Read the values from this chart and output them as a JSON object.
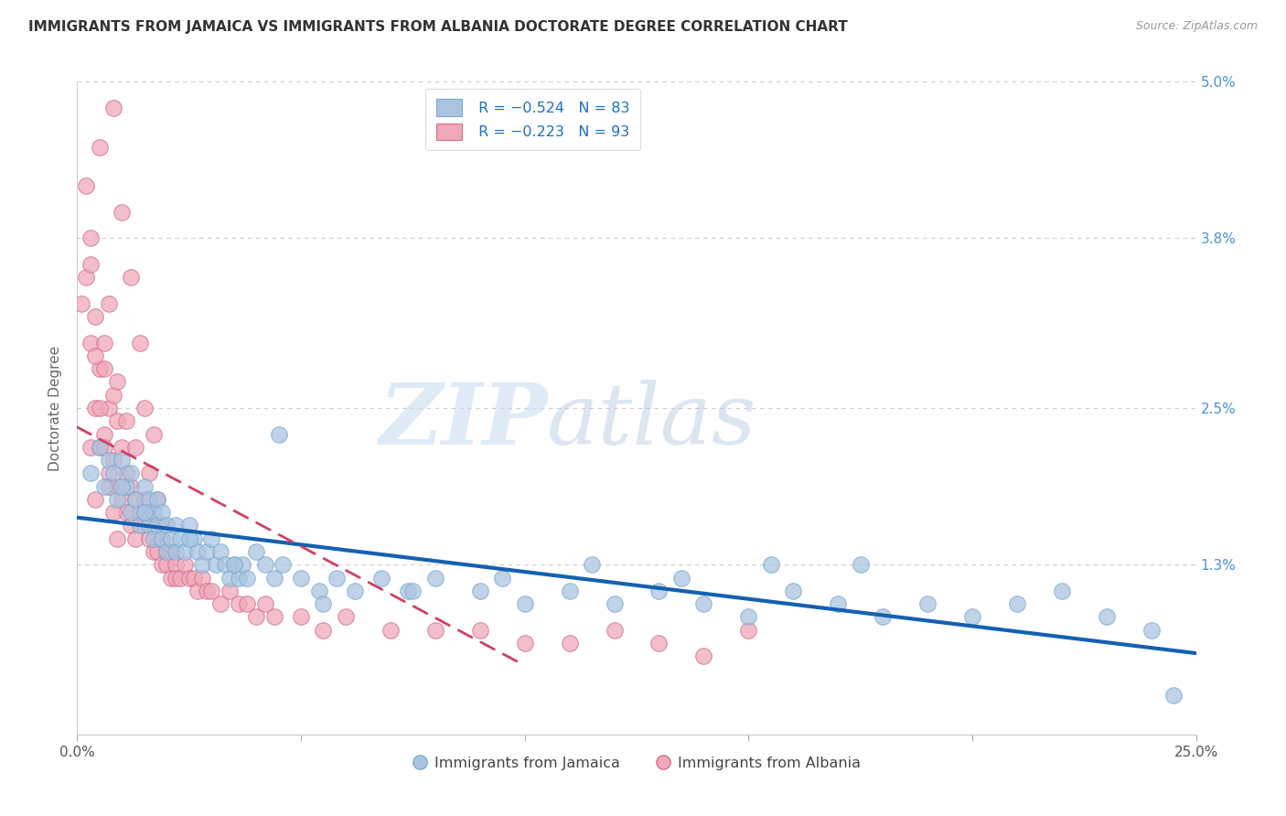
{
  "title": "IMMIGRANTS FROM JAMAICA VS IMMIGRANTS FROM ALBANIA DOCTORATE DEGREE CORRELATION CHART",
  "source": "Source: ZipAtlas.com",
  "ylabel": "Doctorate Degree",
  "xlim": [
    0,
    0.25
  ],
  "ylim": [
    0,
    0.05
  ],
  "ytick_vals": [
    0.0,
    0.013,
    0.025,
    0.038,
    0.05
  ],
  "ytick_labels": [
    "",
    "1.3%",
    "2.5%",
    "3.8%",
    "5.0%"
  ],
  "xtick_show": [
    0.0,
    0.25
  ],
  "xtick_labels_show": [
    "0.0%",
    "25.0%"
  ],
  "xtick_minor": [
    0.05,
    0.1,
    0.15,
    0.2
  ],
  "legend_r_blue": "-0.524",
  "legend_n_blue": "83",
  "legend_r_pink": "-0.223",
  "legend_n_pink": "93",
  "legend_label_blue": "Immigrants from Jamaica",
  "legend_label_pink": "Immigrants from Albania",
  "color_blue": "#aac4e0",
  "color_pink": "#f0a8b8",
  "color_blue_line": "#1460b0",
  "color_pink_line": "#d04060",
  "watermark_zip": "ZIP",
  "watermark_atlas": "atlas",
  "jamaica_x": [
    0.003,
    0.005,
    0.006,
    0.007,
    0.008,
    0.009,
    0.01,
    0.011,
    0.012,
    0.012,
    0.013,
    0.014,
    0.015,
    0.015,
    0.016,
    0.016,
    0.017,
    0.017,
    0.018,
    0.018,
    0.019,
    0.019,
    0.02,
    0.02,
    0.021,
    0.022,
    0.022,
    0.023,
    0.024,
    0.025,
    0.026,
    0.027,
    0.028,
    0.029,
    0.03,
    0.031,
    0.032,
    0.033,
    0.034,
    0.035,
    0.036,
    0.037,
    0.038,
    0.04,
    0.042,
    0.044,
    0.046,
    0.05,
    0.054,
    0.058,
    0.062,
    0.068,
    0.074,
    0.08,
    0.09,
    0.1,
    0.11,
    0.12,
    0.13,
    0.14,
    0.15,
    0.16,
    0.17,
    0.18,
    0.19,
    0.2,
    0.21,
    0.22,
    0.23,
    0.24,
    0.245,
    0.175,
    0.155,
    0.135,
    0.115,
    0.095,
    0.075,
    0.055,
    0.045,
    0.035,
    0.025,
    0.015,
    0.01
  ],
  "jamaica_y": [
    0.02,
    0.022,
    0.019,
    0.021,
    0.02,
    0.018,
    0.021,
    0.019,
    0.02,
    0.017,
    0.018,
    0.016,
    0.019,
    0.017,
    0.018,
    0.016,
    0.017,
    0.015,
    0.018,
    0.016,
    0.017,
    0.015,
    0.016,
    0.014,
    0.015,
    0.016,
    0.014,
    0.015,
    0.014,
    0.016,
    0.015,
    0.014,
    0.013,
    0.014,
    0.015,
    0.013,
    0.014,
    0.013,
    0.012,
    0.013,
    0.012,
    0.013,
    0.012,
    0.014,
    0.013,
    0.012,
    0.013,
    0.012,
    0.011,
    0.012,
    0.011,
    0.012,
    0.011,
    0.012,
    0.011,
    0.01,
    0.011,
    0.01,
    0.011,
    0.01,
    0.009,
    0.011,
    0.01,
    0.009,
    0.01,
    0.009,
    0.01,
    0.011,
    0.009,
    0.008,
    0.003,
    0.013,
    0.013,
    0.012,
    0.013,
    0.012,
    0.011,
    0.01,
    0.023,
    0.013,
    0.015,
    0.017,
    0.019
  ],
  "albania_x": [
    0.001,
    0.002,
    0.003,
    0.003,
    0.004,
    0.004,
    0.005,
    0.005,
    0.006,
    0.006,
    0.007,
    0.007,
    0.008,
    0.008,
    0.009,
    0.009,
    0.01,
    0.01,
    0.011,
    0.011,
    0.012,
    0.012,
    0.013,
    0.013,
    0.014,
    0.015,
    0.015,
    0.016,
    0.016,
    0.017,
    0.017,
    0.018,
    0.018,
    0.019,
    0.019,
    0.02,
    0.02,
    0.021,
    0.021,
    0.022,
    0.022,
    0.023,
    0.024,
    0.025,
    0.026,
    0.027,
    0.028,
    0.029,
    0.03,
    0.032,
    0.034,
    0.036,
    0.038,
    0.04,
    0.042,
    0.044,
    0.05,
    0.055,
    0.06,
    0.07,
    0.08,
    0.09,
    0.1,
    0.11,
    0.12,
    0.13,
    0.14,
    0.15,
    0.003,
    0.004,
    0.005,
    0.006,
    0.007,
    0.008,
    0.009,
    0.01,
    0.011,
    0.012,
    0.013,
    0.014,
    0.015,
    0.016,
    0.017,
    0.018,
    0.019,
    0.002,
    0.003,
    0.004,
    0.005,
    0.006,
    0.007,
    0.008,
    0.009
  ],
  "albania_y": [
    0.033,
    0.035,
    0.03,
    0.022,
    0.025,
    0.018,
    0.028,
    0.022,
    0.03,
    0.023,
    0.025,
    0.02,
    0.026,
    0.021,
    0.024,
    0.019,
    0.022,
    0.018,
    0.02,
    0.017,
    0.019,
    0.016,
    0.018,
    0.015,
    0.017,
    0.018,
    0.016,
    0.017,
    0.015,
    0.016,
    0.014,
    0.015,
    0.014,
    0.015,
    0.013,
    0.014,
    0.013,
    0.014,
    0.012,
    0.013,
    0.012,
    0.012,
    0.013,
    0.012,
    0.012,
    0.011,
    0.012,
    0.011,
    0.011,
    0.01,
    0.011,
    0.01,
    0.01,
    0.009,
    0.01,
    0.009,
    0.009,
    0.008,
    0.009,
    0.008,
    0.008,
    0.008,
    0.007,
    0.007,
    0.008,
    0.007,
    0.006,
    0.008,
    0.038,
    0.032,
    0.045,
    0.028,
    0.033,
    0.048,
    0.027,
    0.04,
    0.024,
    0.035,
    0.022,
    0.03,
    0.025,
    0.02,
    0.023,
    0.018,
    0.016,
    0.042,
    0.036,
    0.029,
    0.025,
    0.022,
    0.019,
    0.017,
    0.015
  ]
}
